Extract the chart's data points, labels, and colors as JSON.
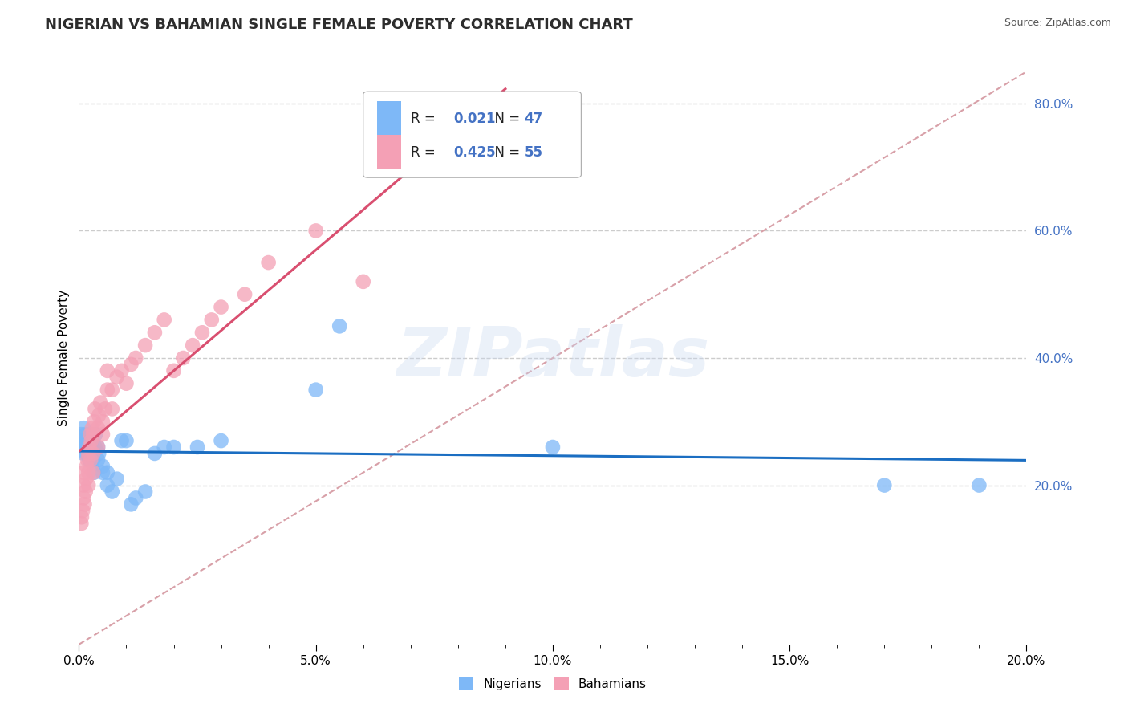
{
  "title": "NIGERIAN VS BAHAMIAN SINGLE FEMALE POVERTY CORRELATION CHART",
  "source": "Source: ZipAtlas.com",
  "ylabel_label": "Single Female Poverty",
  "nigerian_R": 0.021,
  "nigerian_N": 47,
  "bahamian_R": 0.425,
  "bahamian_N": 55,
  "nigerian_color": "#7EB8F7",
  "bahamian_color": "#F4A0B5",
  "nigerian_line_color": "#1B6EC2",
  "bahamian_line_color": "#D94F70",
  "diagonal_color": "#D8A0A8",
  "background_color": "#FFFFFF",
  "grid_color": "#CCCCCC",
  "title_fontsize": 13,
  "legend_fontsize": 12,
  "axis_tick_fontsize": 11,
  "ylabel_color": "#4472C4",
  "xmin": 0.0,
  "xmax": 0.2,
  "ymin": -0.05,
  "ymax": 0.85,
  "ytick_vals": [
    0.2,
    0.4,
    0.6,
    0.8
  ],
  "xtick_vals": [
    0.0,
    0.05,
    0.1,
    0.15,
    0.2
  ],
  "nigerian_x": [
    0.0005,
    0.0008,
    0.001,
    0.001,
    0.001,
    0.0012,
    0.0014,
    0.0015,
    0.0016,
    0.0018,
    0.002,
    0.002,
    0.002,
    0.0022,
    0.0024,
    0.0025,
    0.0026,
    0.0028,
    0.003,
    0.003,
    0.0032,
    0.0034,
    0.0035,
    0.004,
    0.004,
    0.0042,
    0.005,
    0.005,
    0.006,
    0.006,
    0.007,
    0.008,
    0.009,
    0.01,
    0.011,
    0.012,
    0.014,
    0.016,
    0.018,
    0.02,
    0.025,
    0.03,
    0.05,
    0.055,
    0.1,
    0.17,
    0.19
  ],
  "nigerian_y": [
    0.28,
    0.26,
    0.25,
    0.27,
    0.29,
    0.26,
    0.28,
    0.25,
    0.27,
    0.26,
    0.25,
    0.27,
    0.26,
    0.24,
    0.28,
    0.25,
    0.26,
    0.27,
    0.25,
    0.24,
    0.22,
    0.26,
    0.28,
    0.24,
    0.26,
    0.25,
    0.22,
    0.23,
    0.2,
    0.22,
    0.19,
    0.21,
    0.27,
    0.27,
    0.17,
    0.18,
    0.19,
    0.25,
    0.26,
    0.26,
    0.26,
    0.27,
    0.35,
    0.45,
    0.26,
    0.2,
    0.2
  ],
  "bahamian_x": [
    0.0005,
    0.0006,
    0.0008,
    0.001,
    0.001,
    0.001,
    0.0012,
    0.0014,
    0.0015,
    0.0016,
    0.0018,
    0.002,
    0.002,
    0.002,
    0.0022,
    0.0024,
    0.0025,
    0.0026,
    0.0028,
    0.003,
    0.003,
    0.003,
    0.0032,
    0.0034,
    0.004,
    0.004,
    0.0042,
    0.0045,
    0.005,
    0.005,
    0.0055,
    0.006,
    0.006,
    0.007,
    0.007,
    0.008,
    0.009,
    0.01,
    0.011,
    0.012,
    0.014,
    0.016,
    0.018,
    0.02,
    0.022,
    0.024,
    0.026,
    0.028,
    0.03,
    0.035,
    0.04,
    0.05,
    0.06,
    0.075,
    0.09
  ],
  "bahamian_y": [
    0.14,
    0.15,
    0.16,
    0.18,
    0.2,
    0.22,
    0.17,
    0.19,
    0.21,
    0.23,
    0.24,
    0.2,
    0.22,
    0.25,
    0.26,
    0.28,
    0.24,
    0.27,
    0.29,
    0.22,
    0.25,
    0.28,
    0.3,
    0.32,
    0.26,
    0.29,
    0.31,
    0.33,
    0.28,
    0.3,
    0.32,
    0.35,
    0.38,
    0.32,
    0.35,
    0.37,
    0.38,
    0.36,
    0.39,
    0.4,
    0.42,
    0.44,
    0.46,
    0.38,
    0.4,
    0.42,
    0.44,
    0.46,
    0.48,
    0.5,
    0.55,
    0.6,
    0.52,
    0.7,
    0.75
  ]
}
